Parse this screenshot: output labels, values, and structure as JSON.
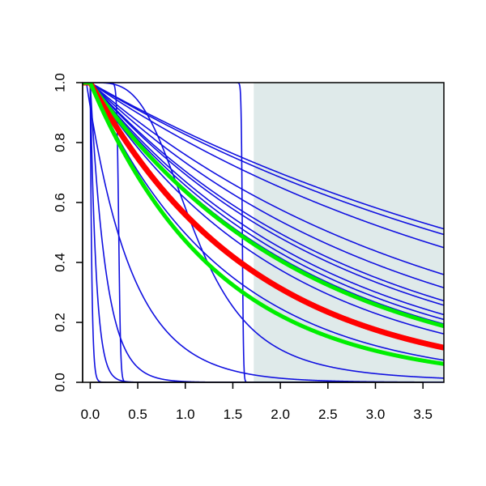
{
  "chart_data": {
    "type": "line",
    "title": "",
    "xlabel": "",
    "ylabel": "",
    "xlim": [
      -0.08,
      3.72
    ],
    "ylim": [
      0,
      1
    ],
    "x_ticks": [
      "0.0",
      "0.5",
      "1.0",
      "1.5",
      "2.0",
      "2.5",
      "3.0",
      "3.5"
    ],
    "y_ticks": [
      "0.0",
      "0.2",
      "0.4",
      "0.6",
      "0.8",
      "1.0"
    ],
    "shaded_region": {
      "x_from": 1.72,
      "x_to": 3.72,
      "color": "#dfeaea"
    },
    "colors": {
      "blue": "#1010e0",
      "red": "#ff0000",
      "green": "#00ee00",
      "axis": "#000000"
    },
    "series": [
      {
        "color": "blue",
        "kind": "exp",
        "x0": 0.0,
        "k": 0.18
      },
      {
        "color": "blue",
        "kind": "exp",
        "x0": 0.0,
        "k": 0.19
      },
      {
        "color": "blue",
        "kind": "exp",
        "x0": 0.0,
        "k": 0.215
      },
      {
        "color": "blue",
        "kind": "exp",
        "x0": 0.0,
        "k": 0.275
      },
      {
        "color": "blue",
        "kind": "exp",
        "x0": 0.0,
        "k": 0.31
      },
      {
        "color": "blue",
        "kind": "exp",
        "x0": 0.0,
        "k": 0.35
      },
      {
        "color": "blue",
        "kind": "exp",
        "x0": 0.0,
        "k": 0.365
      },
      {
        "color": "blue",
        "kind": "exp",
        "x0": 0.0,
        "k": 0.4
      },
      {
        "color": "blue",
        "kind": "exp",
        "x0": 0.0,
        "k": 0.42
      },
      {
        "color": "blue",
        "kind": "exp",
        "x0": 0.0,
        "k": 0.44
      },
      {
        "color": "blue",
        "kind": "exp",
        "x0": 0.0,
        "k": 0.49
      },
      {
        "color": "blue",
        "kind": "exp",
        "x0": 0.0,
        "k": 0.7
      },
      {
        "color": "blue",
        "kind": "hill",
        "x50": 1.1,
        "n": 3.5
      },
      {
        "color": "blue",
        "kind": "exp",
        "x0": -0.04,
        "k": 2.1
      },
      {
        "color": "blue",
        "kind": "exp",
        "x0": 0.0,
        "k": 6.0
      },
      {
        "color": "blue",
        "kind": "exp",
        "x0": 0.0,
        "k": 16
      },
      {
        "color": "blue",
        "kind": "exp",
        "x0": 0.0,
        "k": 60
      },
      {
        "color": "blue",
        "kind": "step",
        "x50": 0.3,
        "w": 0.01
      },
      {
        "color": "blue",
        "kind": "step",
        "x50": 1.6,
        "w": 0.006
      },
      {
        "color": "green",
        "kind": "exp",
        "x0": 0.0,
        "k": 0.45
      },
      {
        "color": "red",
        "kind": "exp",
        "x0": 0.0,
        "k": 0.58
      },
      {
        "color": "green",
        "kind": "exp",
        "x0": 0.0,
        "k": 0.75
      }
    ]
  }
}
